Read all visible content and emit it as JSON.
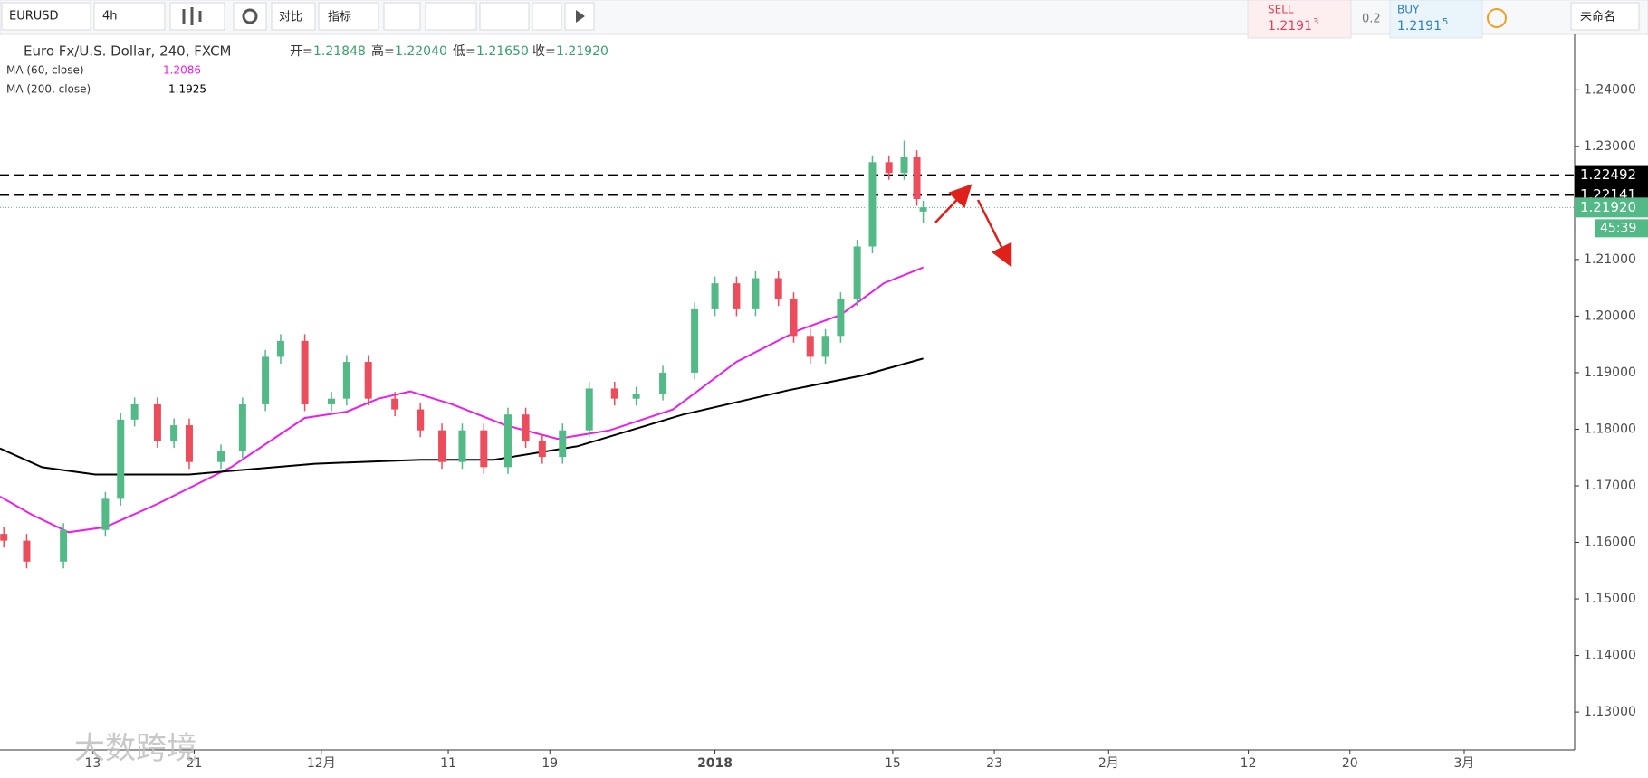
{
  "toolbar": {
    "symbol": "EURUSD",
    "interval": "4h",
    "compare": "对比",
    "indicators": "指标",
    "sell": {
      "label": "SELL",
      "price": "1.2191",
      "pip": "3"
    },
    "spread": "0.2",
    "buy": {
      "label": "BUY",
      "price": "1.2191",
      "pip": "5"
    },
    "layout": "未命名"
  },
  "legend": {
    "title": "Euro Fx/U.S. Dollar, 240, FXCM",
    "open_label": "开=",
    "open": "1.21848",
    "high_label": "高=",
    "high": "1.22040",
    "low_label": "低=",
    "low": "1.21650",
    "close_label": "收=",
    "close": "1.21920"
  },
  "watermark": "大数跨境",
  "chart_data": {
    "type": "candlestick",
    "x": [
      -7.0,
      -5.2,
      -2.3,
      1.0,
      2.2,
      3.3,
      5.1,
      6.4,
      7.6,
      10.1,
      11.8,
      13.6,
      14.8,
      16.7,
      18.8,
      20.0,
      21.7,
      23.8,
      25.8,
      27.5,
      29.1,
      30.8,
      32.7,
      34.1,
      35.4,
      37.0,
      39.1,
      41.1,
      42.8,
      44.9,
      47.4,
      49.0,
      50.7,
      52.2,
      54.0,
      55.2,
      56.5,
      57.7,
      58.9,
      60.2,
      61.4,
      62.7,
      63.9,
      64.9,
      65.4
    ],
    "open": [
      1.1615,
      1.1603,
      1.1566,
      1.1622,
      1.1677,
      1.1817,
      1.1844,
      1.1779,
      1.1807,
      1.1742,
      1.1761,
      1.1844,
      1.1928,
      1.1956,
      1.1844,
      1.1854,
      1.1919,
      1.1854,
      1.1835,
      1.1798,
      1.1742,
      1.1798,
      1.1733,
      1.1826,
      1.1779,
      1.1751,
      1.1798,
      1.1872,
      1.1854,
      1.1863,
      1.19,
      1.2012,
      1.2058,
      1.2012,
      1.2067,
      1.203,
      1.1965,
      1.1928,
      1.1965,
      1.203,
      1.2123,
      1.2272,
      1.2253,
      1.2281,
      1.21848
    ],
    "high": [
      1.1627,
      1.1615,
      1.1634,
      1.1689,
      1.1829,
      1.1856,
      1.1856,
      1.1819,
      1.1819,
      1.1773,
      1.1856,
      1.194,
      1.1968,
      1.1968,
      1.1866,
      1.1931,
      1.1931,
      1.1866,
      1.1847,
      1.181,
      1.181,
      1.181,
      1.1838,
      1.1838,
      1.1791,
      1.181,
      1.1884,
      1.1884,
      1.1875,
      1.1912,
      1.2024,
      1.207,
      1.207,
      1.2079,
      1.2079,
      1.2042,
      1.1977,
      1.1977,
      1.2042,
      1.2135,
      1.2284,
      1.2284,
      1.231,
      1.2293,
      1.2204
    ],
    "low": [
      1.1591,
      1.1554,
      1.1554,
      1.161,
      1.1665,
      1.1805,
      1.1767,
      1.1767,
      1.173,
      1.173,
      1.1749,
      1.1832,
      1.1916,
      1.1832,
      1.1832,
      1.1842,
      1.1842,
      1.1823,
      1.1786,
      1.173,
      1.173,
      1.1721,
      1.1721,
      1.1767,
      1.1739,
      1.1739,
      1.1786,
      1.1842,
      1.1842,
      1.1851,
      1.1888,
      1.2,
      1.2,
      1.2,
      1.2018,
      1.1953,
      1.1916,
      1.1916,
      1.1953,
      1.2018,
      1.2111,
      1.2241,
      1.2241,
      1.2195,
      1.2165
    ],
    "close": [
      1.1603,
      1.1566,
      1.1622,
      1.1677,
      1.1817,
      1.1844,
      1.1779,
      1.1807,
      1.1742,
      1.1761,
      1.1844,
      1.1928,
      1.1956,
      1.1844,
      1.1854,
      1.1919,
      1.1854,
      1.1835,
      1.1798,
      1.1742,
      1.1798,
      1.1733,
      1.1826,
      1.1779,
      1.1751,
      1.1798,
      1.1872,
      1.1854,
      1.1863,
      1.19,
      1.2012,
      1.2058,
      1.2012,
      1.2067,
      1.203,
      1.1965,
      1.1928,
      1.1965,
      1.203,
      1.2123,
      1.2272,
      1.2253,
      1.2281,
      1.2207,
      1.2192
    ],
    "up_color": "#53b987",
    "down_color": "#eb4d5c",
    "series": [
      {
        "name": "MA (60, close)",
        "color": "#e91ee9",
        "x": [
          -7.3,
          -4.8,
          -1.9,
          1.0,
          5.1,
          10.9,
          16.7,
          20.0,
          22.5,
          25.0,
          28.3,
          32.5,
          36.6,
          40.7,
          45.7,
          50.7,
          55.6,
          58.9,
          62.3,
          65.4
        ],
        "values": [
          1.1681,
          1.1649,
          1.1618,
          1.1627,
          1.1668,
          1.1733,
          1.182,
          1.1831,
          1.1854,
          1.1867,
          1.1844,
          1.1807,
          1.1783,
          1.1798,
          1.1835,
          1.1919,
          1.1975,
          1.2002,
          1.2058,
          1.2086
        ]
      },
      {
        "name": "MA (200, close)",
        "color": "#000000",
        "x": [
          -7.3,
          -4.0,
          0.2,
          7.6,
          17.5,
          25.8,
          31.6,
          38.2,
          46.5,
          54.8,
          60.6,
          65.4
        ],
        "values": [
          1.1766,
          1.1733,
          1.172,
          1.172,
          1.1739,
          1.1746,
          1.1746,
          1.177,
          1.1826,
          1.1869,
          1.1895,
          1.1925
        ]
      }
    ],
    "levels": [
      1.22492,
      1.22141
    ],
    "last_price": {
      "value": 1.2192,
      "label": "1.21920"
    },
    "countdown": "45:39",
    "xlim": [
      -7.3,
      116.7
    ],
    "xticks": [
      {
        "value": 0,
        "label": "13"
      },
      {
        "value": 8,
        "label": "21"
      },
      {
        "value": 18,
        "label": "12月"
      },
      {
        "value": 28,
        "label": "11"
      },
      {
        "value": 36,
        "label": "19"
      },
      {
        "value": 49,
        "label": "2018"
      },
      {
        "value": 63,
        "label": "15"
      },
      {
        "value": 71,
        "label": "23"
      },
      {
        "value": 80,
        "label": "2月"
      },
      {
        "value": 91,
        "label": "12"
      },
      {
        "value": 99,
        "label": "20"
      },
      {
        "value": 108,
        "label": "3月"
      }
    ],
    "ylim": [
      1.1233,
      1.2498
    ],
    "yticks": [
      {
        "value": 1.13,
        "label": "1.13000"
      },
      {
        "value": 1.14,
        "label": "1.14000"
      },
      {
        "value": 1.15,
        "label": "1.15000"
      },
      {
        "value": 1.16,
        "label": "1.16000"
      },
      {
        "value": 1.17,
        "label": "1.17000"
      },
      {
        "value": 1.18,
        "label": "1.18000"
      },
      {
        "value": 1.19,
        "label": "1.19000"
      },
      {
        "value": 1.2,
        "label": "1.20000"
      },
      {
        "value": 1.21,
        "label": "1.21000"
      },
      {
        "value": 1.22,
        "label": "1.22000"
      },
      {
        "value": 1.23,
        "label": "1.23000"
      },
      {
        "value": 1.24,
        "label": "1.24000"
      }
    ]
  }
}
